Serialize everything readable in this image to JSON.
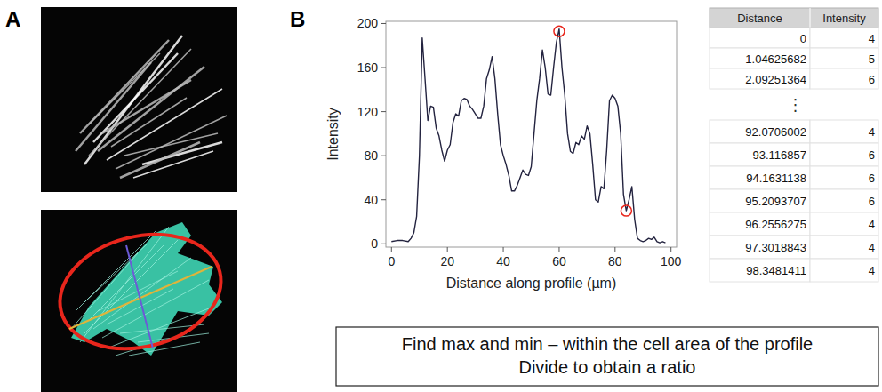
{
  "panel_labels": [
    "A",
    "B"
  ],
  "chart_data": {
    "type": "line",
    "xlabel": "Distance along profile (µm)",
    "ylabel": "Intensity",
    "x": [
      0,
      2,
      4,
      6,
      7,
      8,
      9,
      10,
      11,
      12,
      13,
      14,
      15,
      16,
      17,
      18,
      19,
      20,
      21,
      22,
      23,
      24,
      25,
      26,
      27,
      28,
      29,
      30,
      31,
      32,
      33,
      34,
      35,
      36,
      37,
      38,
      39,
      40,
      41,
      42,
      43,
      44,
      45,
      46,
      47,
      48,
      49,
      50,
      51,
      52,
      53,
      54,
      55,
      56,
      57,
      58,
      59,
      60,
      61,
      62,
      63,
      64,
      65,
      66,
      67,
      68,
      69,
      70,
      71,
      72,
      73,
      74,
      75,
      76,
      77,
      78,
      79,
      80,
      81,
      82,
      83,
      84,
      85,
      86,
      87,
      88,
      89,
      90,
      91,
      92,
      93,
      94,
      95,
      96,
      97,
      98
    ],
    "values": [
      2,
      3,
      3,
      2,
      5,
      10,
      25,
      80,
      187,
      150,
      112,
      125,
      124,
      105,
      98,
      85,
      75,
      85,
      90,
      110,
      118,
      116,
      130,
      132,
      131,
      125,
      122,
      118,
      114,
      114,
      125,
      150,
      158,
      170,
      150,
      118,
      90,
      80,
      72,
      62,
      48,
      48,
      53,
      60,
      67,
      63,
      62,
      70,
      100,
      130,
      150,
      176,
      160,
      136,
      135,
      160,
      183,
      195,
      160,
      135,
      100,
      84,
      82,
      92,
      90,
      98,
      95,
      107,
      100,
      72,
      40,
      38,
      52,
      50,
      85,
      130,
      135,
      132,
      125,
      100,
      45,
      30,
      40,
      52,
      22,
      5,
      3,
      2,
      3,
      5,
      4,
      6,
      2,
      1,
      2,
      1
    ],
    "color": "#23233f",
    "xlim": [
      -2,
      102
    ],
    "ylim": [
      -3,
      202
    ],
    "xticks": [
      0,
      20,
      40,
      60,
      80,
      100
    ],
    "yticks": [
      0,
      40,
      80,
      120,
      160,
      200
    ],
    "grid": false,
    "highlighted_points": {
      "x": [
        60,
        84
      ],
      "values": [
        193,
        30
      ],
      "color": "#e8261c"
    }
  },
  "table": {
    "columns": [
      "Distance",
      "Intensity"
    ],
    "top_rows": [
      [
        0,
        4
      ],
      [
        1.04625682,
        5
      ],
      [
        2.09251364,
        6
      ]
    ],
    "ellipsis": "⋮",
    "bottom_rows": [
      [
        92.0706002,
        4
      ],
      [
        93.116857,
        6
      ],
      [
        94.1631138,
        6
      ],
      [
        95.2093707,
        6
      ],
      [
        96.2556275,
        4
      ],
      [
        97.3018843,
        4
      ],
      [
        98.3481411,
        4
      ]
    ]
  },
  "note": {
    "lines": [
      "Find max and min – within the cell area of the profile",
      "Divide to obtain a ratio"
    ]
  }
}
